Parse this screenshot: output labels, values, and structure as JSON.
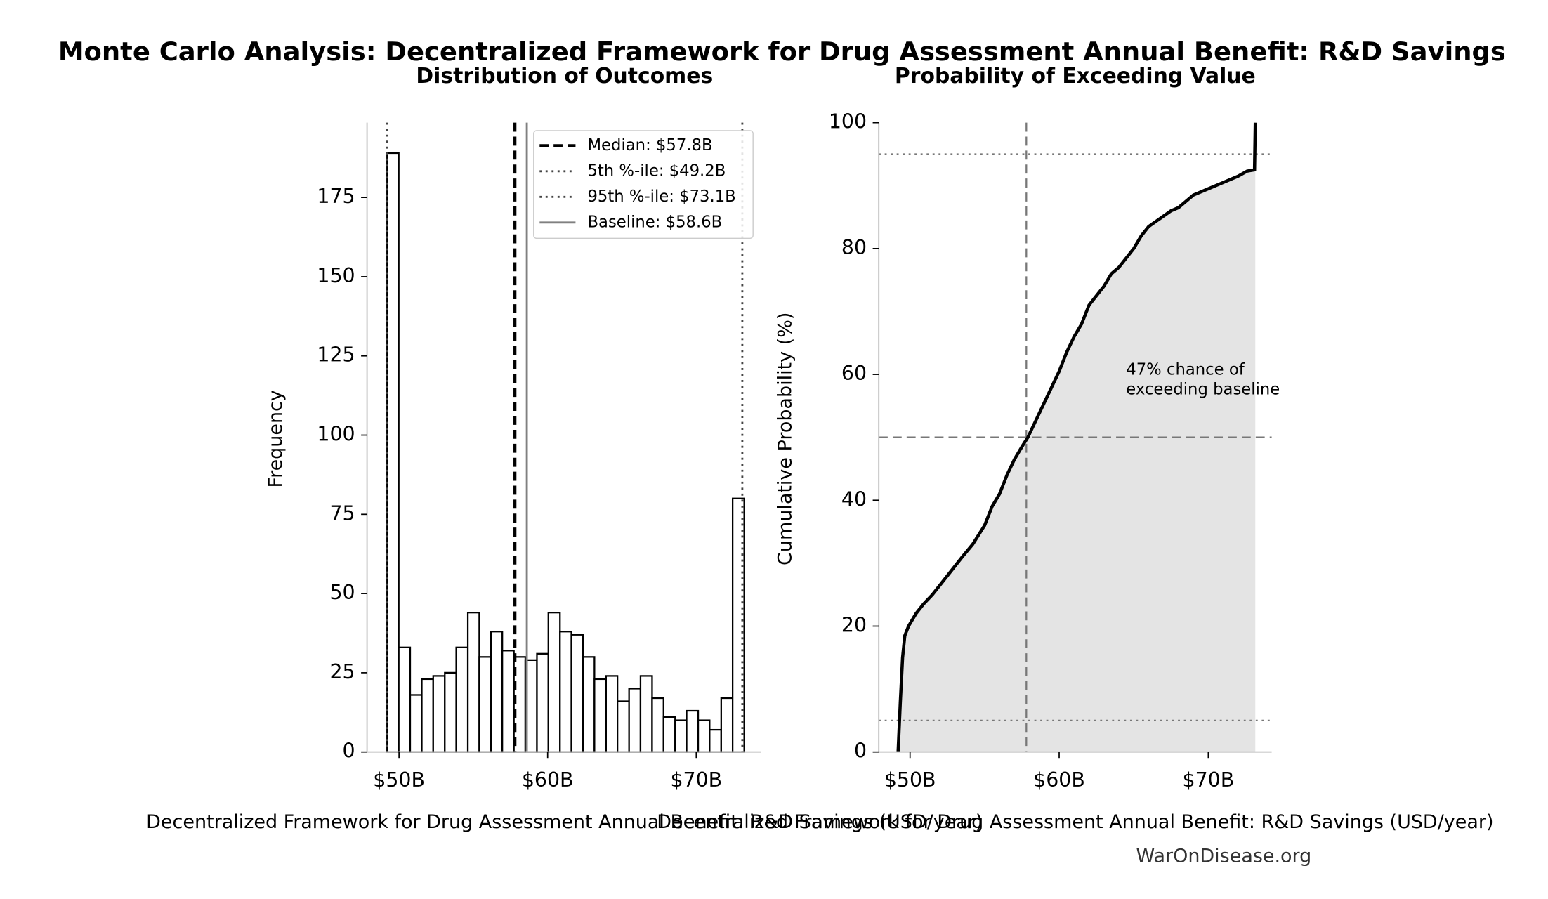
{
  "title": "Monte Carlo Analysis: Decentralized Framework for Drug Assessment Annual Benefit: R&D Savings",
  "source": "WarOnDisease.org",
  "chart_data": [
    {
      "type": "histogram",
      "subtitle": "Distribution of Outcomes",
      "xlabel": "Decentralized Framework for Drug Assessment Annual Benefit: R&D Savings (USD/year)",
      "ylabel": "Frequency",
      "bins": [
        49.2,
        49.98,
        50.75,
        51.53,
        52.3,
        53.08,
        53.85,
        54.63,
        55.4,
        56.18,
        56.95,
        57.73,
        58.5,
        59.28,
        60.05,
        60.83,
        61.6,
        62.38,
        63.15,
        63.93,
        64.7,
        65.48,
        66.25,
        67.03,
        67.8,
        68.58,
        69.35,
        70.13,
        70.9,
        71.68,
        72.45,
        73.23
      ],
      "values": [
        189,
        33,
        18,
        23,
        24,
        25,
        33,
        44,
        30,
        38,
        32,
        30,
        29,
        31,
        44,
        38,
        37,
        30,
        23,
        24,
        16,
        20,
        24,
        17,
        11,
        10,
        13,
        10,
        7,
        17,
        80
      ],
      "color": "#ffffff",
      "edgecolor": "#000000",
      "xlim": [
        47.85,
        74.36
      ],
      "ylim": [
        0,
        198.6
      ],
      "xticks": [
        {
          "value": 50,
          "label": "$50B"
        },
        {
          "value": 60,
          "label": "$60B"
        },
        {
          "value": 70,
          "label": "$70B"
        }
      ],
      "yticks": [
        0,
        25,
        50,
        75,
        100,
        125,
        150,
        175
      ],
      "legend": "upper right",
      "reference_lines": [
        {
          "label": "Median: $57.8B",
          "value": 57.8,
          "style": "dashed",
          "color": "#000000"
        },
        {
          "label": "5th %-ile: $49.2B",
          "value": 49.2,
          "style": "dotted",
          "color": "#444444"
        },
        {
          "label": "95th %-ile: $73.1B",
          "value": 73.1,
          "style": "dotted",
          "color": "#444444"
        },
        {
          "label": "Baseline: $58.6B",
          "value": 58.6,
          "style": "solid",
          "color": "#808080"
        }
      ]
    },
    {
      "type": "area",
      "subtitle": "Probability of Exceeding Value",
      "xlabel": "Decentralized Framework for Drug Assessment Annual Benefit: R&D Savings (USD/year)",
      "ylabel": "Cumulative Probability (%)",
      "x": [
        49.2,
        49.35,
        49.5,
        49.65,
        49.9,
        50.4,
        50.9,
        51.5,
        52.5,
        53.5,
        54.2,
        55,
        55.5,
        56,
        56.5,
        57,
        57.5,
        57.9,
        58.5,
        59,
        59.5,
        60,
        60.5,
        61,
        61.5,
        62,
        62.5,
        63,
        63.5,
        64,
        65,
        65.5,
        66,
        66.6,
        67.5,
        68,
        69,
        70,
        71,
        72,
        72.6,
        73.1,
        73.15
      ],
      "values": [
        0,
        8,
        15,
        18.5,
        20,
        22,
        23.5,
        25,
        28,
        31,
        33,
        36,
        39,
        41,
        44,
        46.5,
        48.5,
        50,
        53,
        55.5,
        58,
        60.5,
        63.5,
        66,
        68,
        71,
        72.5,
        74,
        76,
        77,
        80,
        82,
        83.5,
        84.5,
        86,
        86.5,
        88.5,
        89.5,
        90.5,
        91.5,
        92.3,
        92.5,
        100
      ],
      "color": "#000000",
      "fill": "#e4e4e4",
      "xlim": [
        47.9,
        74.25
      ],
      "ylim": [
        0,
        100
      ],
      "xticks": [
        {
          "value": 50,
          "label": "$50B"
        },
        {
          "value": 60,
          "label": "$60B"
        },
        {
          "value": 70,
          "label": "$70B"
        }
      ],
      "yticks": [
        0,
        20,
        40,
        60,
        80,
        100
      ],
      "hlines": [
        {
          "value": 5,
          "style": "dotted"
        },
        {
          "value": 95,
          "style": "dotted"
        },
        {
          "value": 50,
          "style": "dashed"
        }
      ],
      "vlines": [
        {
          "value": 57.8,
          "style": "dashed"
        }
      ],
      "annotation": [
        "47% chance of",
        "exceeding baseline"
      ]
    }
  ]
}
